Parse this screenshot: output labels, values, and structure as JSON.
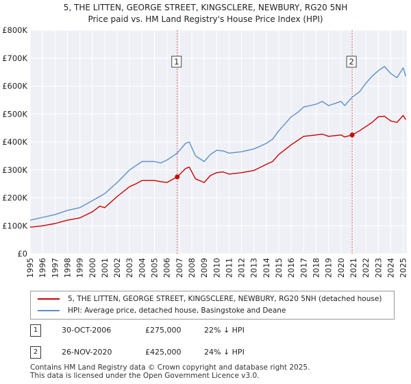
{
  "chart_data": {
    "type": "line",
    "title": "5, THE LITTEN, GEORGE STREET, KINGSCLERE, NEWBURY, RG20 5NH",
    "subtitle": "Price paid vs. HM Land Registry's House Price Index (HPI)",
    "xlabel": "",
    "ylabel": "",
    "xlim": [
      1995,
      2025.3
    ],
    "ylim": [
      0,
      800000
    ],
    "yticks": [
      {
        "value": 0,
        "label": "£0"
      },
      {
        "value": 100000,
        "label": "£100K"
      },
      {
        "value": 200000,
        "label": "£200K"
      },
      {
        "value": 300000,
        "label": "£300K"
      },
      {
        "value": 400000,
        "label": "£400K"
      },
      {
        "value": 500000,
        "label": "£500K"
      },
      {
        "value": 600000,
        "label": "£600K"
      },
      {
        "value": 700000,
        "label": "£700K"
      },
      {
        "value": 800000,
        "label": "£800K"
      }
    ],
    "xticks": [
      "1995",
      "1996",
      "1997",
      "1998",
      "1999",
      "2000",
      "2001",
      "2002",
      "2003",
      "2004",
      "2005",
      "2006",
      "2007",
      "2008",
      "2009",
      "2010",
      "2011",
      "2012",
      "2013",
      "2014",
      "2015",
      "2016",
      "2017",
      "2018",
      "2019",
      "2020",
      "2021",
      "2022",
      "2023",
      "2024",
      "2025"
    ],
    "grid": true,
    "series": [
      {
        "name": "5, THE LITTEN, GEORGE STREET, KINGSCLERE, NEWBURY, RG20 5NH (detached house)",
        "color": "#cc0000",
        "x": [
          1995.0,
          1996.0,
          1997.0,
          1998.0,
          1999.0,
          2000.0,
          2000.6,
          2001.0,
          2002.0,
          2003.0,
          2003.5,
          2004.0,
          2005.0,
          2005.5,
          2006.0,
          2006.83,
          2007.5,
          2007.8,
          2008.3,
          2009.0,
          2009.5,
          2010.0,
          2010.5,
          2011.0,
          2012.0,
          2013.0,
          2014.0,
          2014.5,
          2015.0,
          2016.0,
          2016.5,
          2017.0,
          2018.0,
          2018.5,
          2019.0,
          2020.0,
          2020.3,
          2020.9,
          2021.5,
          2022.0,
          2022.5,
          2023.0,
          2023.5,
          2024.0,
          2024.5,
          2025.0,
          2025.2
        ],
        "y": [
          95000,
          100000,
          108000,
          120000,
          128000,
          150000,
          170000,
          165000,
          205000,
          240000,
          250000,
          262000,
          262000,
          258000,
          255000,
          275000,
          305000,
          310000,
          268000,
          255000,
          280000,
          290000,
          293000,
          285000,
          290000,
          298000,
          320000,
          330000,
          355000,
          390000,
          405000,
          420000,
          425000,
          428000,
          420000,
          425000,
          418000,
          425000,
          440000,
          455000,
          470000,
          490000,
          492000,
          475000,
          470000,
          495000,
          480000
        ]
      },
      {
        "name": "HPI: Average price, detached house, Basingstoke and Deane",
        "color": "#5b8fc9",
        "x": [
          1995.0,
          1996.0,
          1997.0,
          1998.0,
          1999.0,
          2000.0,
          2000.6,
          2001.0,
          2002.0,
          2003.0,
          2003.5,
          2004.0,
          2005.0,
          2005.5,
          2006.0,
          2006.83,
          2007.5,
          2007.8,
          2008.3,
          2009.0,
          2009.5,
          2010.0,
          2010.5,
          2011.0,
          2012.0,
          2013.0,
          2014.0,
          2014.5,
          2015.0,
          2016.0,
          2016.5,
          2017.0,
          2018.0,
          2018.5,
          2019.0,
          2020.0,
          2020.3,
          2020.9,
          2021.5,
          2022.0,
          2022.5,
          2023.0,
          2023.5,
          2024.0,
          2024.5,
          2025.0,
          2025.2
        ],
        "y": [
          120000,
          130000,
          140000,
          155000,
          165000,
          190000,
          205000,
          215000,
          255000,
          300000,
          315000,
          330000,
          330000,
          325000,
          335000,
          360000,
          395000,
          400000,
          350000,
          330000,
          355000,
          370000,
          368000,
          360000,
          365000,
          375000,
          395000,
          410000,
          440000,
          490000,
          505000,
          525000,
          535000,
          545000,
          530000,
          545000,
          530000,
          560000,
          580000,
          610000,
          635000,
          655000,
          670000,
          645000,
          630000,
          665000,
          635000
        ]
      }
    ],
    "annotations": [
      {
        "label": "1",
        "x": 2006.83,
        "price": 275000
      },
      {
        "label": "2",
        "x": 2020.9,
        "price": 425000
      }
    ]
  },
  "legend": {
    "entries": [
      {
        "label": "5, THE LITTEN, GEORGE STREET, KINGSCLERE, NEWBURY, RG20 5NH (detached house)"
      },
      {
        "label": "HPI: Average price, detached house, Basingstoke and Deane"
      }
    ]
  },
  "sales": [
    {
      "num": "1",
      "date": "30-OCT-2006",
      "price": "£275,000",
      "hpi": "22% ↓ HPI"
    },
    {
      "num": "2",
      "date": "26-NOV-2020",
      "price": "£425,000",
      "hpi": "24% ↓ HPI"
    }
  ],
  "footer": {
    "line1": "Contains HM Land Registry data © Crown copyright and database right 2025.",
    "line2": "This data is licensed under the Open Government Licence v3.0."
  }
}
